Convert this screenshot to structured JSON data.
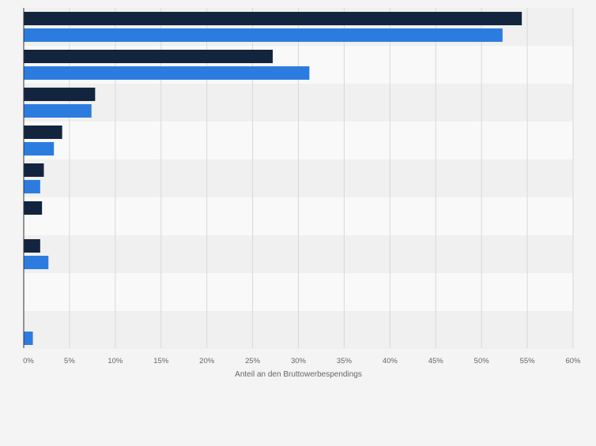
{
  "chart_data": {
    "type": "bar",
    "orientation": "horizontal",
    "categories": [
      "",
      "",
      "",
      "",
      "",
      "",
      "",
      "",
      ""
    ],
    "series": [
      {
        "color": "#13253e",
        "values": [
          54.4,
          27.2,
          7.8,
          4.2,
          2.2,
          2.0,
          1.8,
          null,
          null
        ]
      },
      {
        "color": "#2c7ce0",
        "values": [
          52.3,
          31.2,
          7.4,
          3.3,
          1.8,
          null,
          2.7,
          null,
          1.0
        ]
      }
    ],
    "xlabel": "Anteil an den Bruttowerbespendings",
    "ylabel": "",
    "xlim": [
      0,
      60
    ],
    "x_ticks": [
      "0%",
      "5%",
      "10%",
      "15%",
      "20%",
      "25%",
      "30%",
      "35%",
      "40%",
      "45%",
      "50%",
      "55%",
      "60%"
    ],
    "grid": true,
    "legend": "none",
    "row_band_colors": [
      "#f0f0f0",
      "#f9f9f9"
    ]
  }
}
